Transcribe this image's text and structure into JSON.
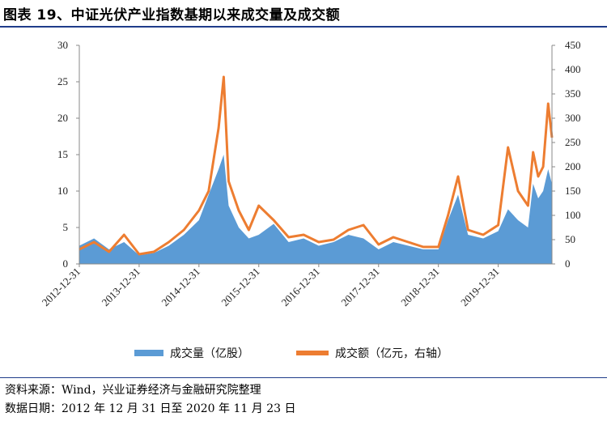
{
  "title": "图表 19、中证光伏产业指数基期以来成交量及成交额",
  "footer": {
    "source": "资料来源：Wind，兴业证券经济与金融研究院整理",
    "date": "数据日期：2012 年 12 月 31 日至 2020 年 11 月 23 日"
  },
  "colors": {
    "volume": "#5b9bd5",
    "amount": "#ed7d31"
  },
  "chart_data": {
    "type": "area",
    "x_ticks": [
      "2012-12-31",
      "2013-12-31",
      "2014-12-31",
      "2015-12-31",
      "2016-12-31",
      "2017-12-31",
      "2018-12-31",
      "2019-12-31"
    ],
    "x_range": [
      "2012-12-31",
      "2020-11-23"
    ],
    "y_left": {
      "ticks": [
        0,
        5,
        10,
        15,
        20,
        25,
        30
      ],
      "range": [
        0,
        30
      ]
    },
    "y_right": {
      "ticks": [
        0,
        50,
        100,
        150,
        200,
        250,
        300,
        350,
        400,
        450
      ],
      "range": [
        0,
        450
      ]
    },
    "x": [
      "2012-12-31",
      "2013-03-31",
      "2013-06-30",
      "2013-09-30",
      "2013-12-31",
      "2014-03-31",
      "2014-06-30",
      "2014-09-30",
      "2014-12-31",
      "2015-02-28",
      "2015-04-30",
      "2015-05-31",
      "2015-06-30",
      "2015-08-31",
      "2015-10-31",
      "2015-12-31",
      "2016-03-31",
      "2016-06-30",
      "2016-09-30",
      "2016-12-31",
      "2017-03-31",
      "2017-06-30",
      "2017-09-30",
      "2017-12-31",
      "2018-03-31",
      "2018-06-30",
      "2018-09-30",
      "2018-12-31",
      "2019-02-28",
      "2019-04-30",
      "2019-06-30",
      "2019-09-30",
      "2019-12-31",
      "2020-02-29",
      "2020-04-30",
      "2020-06-30",
      "2020-07-31",
      "2020-08-31",
      "2020-09-30",
      "2020-10-31",
      "2020-11-23"
    ],
    "series": [
      {
        "name": "成交量（亿股）",
        "axis": "left",
        "type": "area",
        "values": [
          2.5,
          3.5,
          2.0,
          3.0,
          1.2,
          1.5,
          2.5,
          4.0,
          6.0,
          9.5,
          13.0,
          15.0,
          8.0,
          5.0,
          3.5,
          4.0,
          5.5,
          3.0,
          3.5,
          2.5,
          3.0,
          4.0,
          3.5,
          2.0,
          3.0,
          2.5,
          2.0,
          2.0,
          6.0,
          9.5,
          4.0,
          3.5,
          4.5,
          7.5,
          6.0,
          5.0,
          11.0,
          9.0,
          10.0,
          13.0,
          11.0
        ]
      },
      {
        "name": "成交额（亿元，右轴）",
        "axis": "right",
        "type": "line",
        "values": [
          30,
          45,
          25,
          60,
          20,
          25,
          45,
          70,
          110,
          150,
          280,
          385,
          170,
          110,
          70,
          120,
          90,
          55,
          60,
          45,
          50,
          70,
          80,
          40,
          55,
          45,
          35,
          35,
          100,
          180,
          70,
          60,
          80,
          240,
          150,
          120,
          230,
          180,
          200,
          330,
          260
        ]
      }
    ],
    "legend_position": "bottom",
    "grid": false
  }
}
